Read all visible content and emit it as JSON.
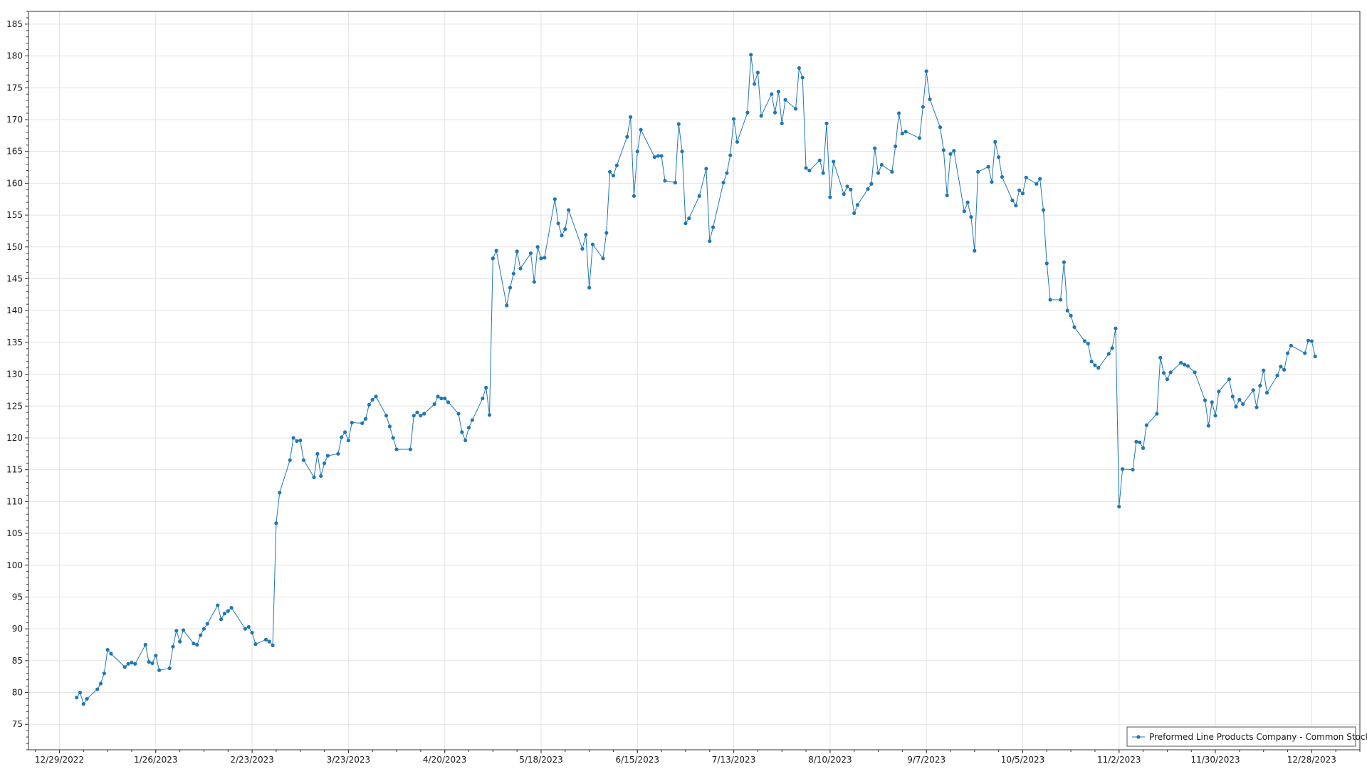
{
  "colors": {
    "series": "#1f77b4",
    "grid": "#e3e3e3",
    "axis": "#333333",
    "legend_border": "#555555"
  },
  "chart_data": {
    "type": "line",
    "title": "",
    "xlabel": "",
    "ylabel": "",
    "ylim": [
      71,
      187
    ],
    "xlim": [
      "2022-12-20",
      "2024-01-11"
    ],
    "y_ticks": [
      75,
      80,
      85,
      90,
      95,
      100,
      105,
      110,
      115,
      120,
      125,
      130,
      135,
      140,
      145,
      150,
      155,
      160,
      165,
      170,
      175,
      180,
      185
    ],
    "x_ticks": [
      {
        "date": "2022-12-29",
        "label": "12/29/2022"
      },
      {
        "date": "2023-01-26",
        "label": "1/26/2023"
      },
      {
        "date": "2023-02-23",
        "label": "2/23/2023"
      },
      {
        "date": "2023-03-23",
        "label": "3/23/2023"
      },
      {
        "date": "2023-04-20",
        "label": "4/20/2023"
      },
      {
        "date": "2023-05-18",
        "label": "5/18/2023"
      },
      {
        "date": "2023-06-15",
        "label": "6/15/2023"
      },
      {
        "date": "2023-07-13",
        "label": "7/13/2023"
      },
      {
        "date": "2023-08-10",
        "label": "8/10/2023"
      },
      {
        "date": "2023-09-07",
        "label": "9/7/2023"
      },
      {
        "date": "2023-10-05",
        "label": "10/5/2023"
      },
      {
        "date": "2023-11-02",
        "label": "11/2/2023"
      },
      {
        "date": "2023-11-30",
        "label": "11/30/2023"
      },
      {
        "date": "2023-12-28",
        "label": "12/28/2023"
      }
    ],
    "grid": true,
    "legend_position": "bottom-right",
    "series": [
      {
        "name": "Preformed Line Products Company - Common Stock",
        "marker": "circle",
        "points": [
          [
            "2023-01-03",
            79.2
          ],
          [
            "2023-01-04",
            80.0
          ],
          [
            "2023-01-05",
            78.2
          ],
          [
            "2023-01-06",
            79.0
          ],
          [
            "2023-01-09",
            80.5
          ],
          [
            "2023-01-10",
            81.4
          ],
          [
            "2023-01-11",
            83.0
          ],
          [
            "2023-01-12",
            86.7
          ],
          [
            "2023-01-13",
            86.1
          ],
          [
            "2023-01-17",
            84.0
          ],
          [
            "2023-01-18",
            84.5
          ],
          [
            "2023-01-19",
            84.7
          ],
          [
            "2023-01-20",
            84.5
          ],
          [
            "2023-01-23",
            87.5
          ],
          [
            "2023-01-24",
            84.8
          ],
          [
            "2023-01-25",
            84.6
          ],
          [
            "2023-01-26",
            85.8
          ],
          [
            "2023-01-27",
            83.5
          ],
          [
            "2023-01-30",
            83.8
          ],
          [
            "2023-01-31",
            87.2
          ],
          [
            "2023-02-01",
            89.7
          ],
          [
            "2023-02-02",
            88.0
          ],
          [
            "2023-02-03",
            89.8
          ],
          [
            "2023-02-06",
            87.7
          ],
          [
            "2023-02-07",
            87.5
          ],
          [
            "2023-02-08",
            89.0
          ],
          [
            "2023-02-09",
            90.0
          ],
          [
            "2023-02-10",
            90.8
          ],
          [
            "2023-02-13",
            93.7
          ],
          [
            "2023-02-14",
            91.5
          ],
          [
            "2023-02-15",
            92.4
          ],
          [
            "2023-02-16",
            92.8
          ],
          [
            "2023-02-17",
            93.3
          ],
          [
            "2023-02-21",
            90.0
          ],
          [
            "2023-02-22",
            90.3
          ],
          [
            "2023-02-23",
            89.4
          ],
          [
            "2023-02-24",
            87.6
          ],
          [
            "2023-02-27",
            88.3
          ],
          [
            "2023-02-28",
            88.0
          ],
          [
            "2023-03-01",
            87.4
          ],
          [
            "2023-03-02",
            106.6
          ],
          [
            "2023-03-03",
            111.4
          ],
          [
            "2023-03-06",
            116.5
          ],
          [
            "2023-03-07",
            120.0
          ],
          [
            "2023-03-08",
            119.5
          ],
          [
            "2023-03-09",
            119.6
          ],
          [
            "2023-03-10",
            116.5
          ],
          [
            "2023-03-13",
            113.8
          ],
          [
            "2023-03-14",
            117.5
          ],
          [
            "2023-03-15",
            114.0
          ],
          [
            "2023-03-16",
            116.0
          ],
          [
            "2023-03-17",
            117.2
          ],
          [
            "2023-03-20",
            117.5
          ],
          [
            "2023-03-21",
            120.1
          ],
          [
            "2023-03-22",
            120.9
          ],
          [
            "2023-03-23",
            119.6
          ],
          [
            "2023-03-24",
            122.4
          ],
          [
            "2023-03-27",
            122.3
          ],
          [
            "2023-03-28",
            123.0
          ],
          [
            "2023-03-29",
            125.2
          ],
          [
            "2023-03-30",
            126.0
          ],
          [
            "2023-03-31",
            126.5
          ],
          [
            "2023-04-03",
            123.5
          ],
          [
            "2023-04-04",
            121.8
          ],
          [
            "2023-04-05",
            120.0
          ],
          [
            "2023-04-06",
            118.2
          ],
          [
            "2023-04-10",
            118.2
          ],
          [
            "2023-04-11",
            123.5
          ],
          [
            "2023-04-12",
            124.0
          ],
          [
            "2023-04-13",
            123.5
          ],
          [
            "2023-04-14",
            123.8
          ],
          [
            "2023-04-17",
            125.3
          ],
          [
            "2023-04-18",
            126.5
          ],
          [
            "2023-04-19",
            126.2
          ],
          [
            "2023-04-20",
            126.2
          ],
          [
            "2023-04-21",
            125.6
          ],
          [
            "2023-04-24",
            123.8
          ],
          [
            "2023-04-25",
            120.9
          ],
          [
            "2023-04-26",
            119.6
          ],
          [
            "2023-04-27",
            121.6
          ],
          [
            "2023-04-28",
            122.8
          ],
          [
            "2023-05-01",
            126.2
          ],
          [
            "2023-05-02",
            127.9
          ],
          [
            "2023-05-03",
            123.6
          ],
          [
            "2023-05-04",
            148.2
          ],
          [
            "2023-05-05",
            149.4
          ],
          [
            "2023-05-08",
            140.8
          ],
          [
            "2023-05-09",
            143.6
          ],
          [
            "2023-05-10",
            145.8
          ],
          [
            "2023-05-11",
            149.3
          ],
          [
            "2023-05-12",
            146.6
          ],
          [
            "2023-05-15",
            149.0
          ],
          [
            "2023-05-16",
            144.5
          ],
          [
            "2023-05-17",
            150.0
          ],
          [
            "2023-05-18",
            148.2
          ],
          [
            "2023-05-19",
            148.3
          ],
          [
            "2023-05-22",
            157.5
          ],
          [
            "2023-05-23",
            153.7
          ],
          [
            "2023-05-24",
            151.8
          ],
          [
            "2023-05-25",
            152.8
          ],
          [
            "2023-05-26",
            155.8
          ],
          [
            "2023-05-30",
            149.7
          ],
          [
            "2023-05-31",
            151.9
          ],
          [
            "2023-06-01",
            143.6
          ],
          [
            "2023-06-02",
            150.4
          ],
          [
            "2023-06-05",
            148.2
          ],
          [
            "2023-06-06",
            152.2
          ],
          [
            "2023-06-07",
            161.8
          ],
          [
            "2023-06-08",
            161.2
          ],
          [
            "2023-06-09",
            162.8
          ],
          [
            "2023-06-12",
            167.3
          ],
          [
            "2023-06-13",
            170.4
          ],
          [
            "2023-06-14",
            158.0
          ],
          [
            "2023-06-15",
            165.0
          ],
          [
            "2023-06-16",
            168.4
          ],
          [
            "2023-06-20",
            164.1
          ],
          [
            "2023-06-21",
            164.3
          ],
          [
            "2023-06-22",
            164.3
          ],
          [
            "2023-06-23",
            160.4
          ],
          [
            "2023-06-26",
            160.1
          ],
          [
            "2023-06-27",
            169.3
          ],
          [
            "2023-06-28",
            165.0
          ],
          [
            "2023-06-29",
            153.7
          ],
          [
            "2023-06-30",
            154.5
          ],
          [
            "2023-07-03",
            158.0
          ],
          [
            "2023-07-05",
            162.3
          ],
          [
            "2023-07-06",
            150.9
          ],
          [
            "2023-07-07",
            153.1
          ],
          [
            "2023-07-10",
            160.1
          ],
          [
            "2023-07-11",
            161.6
          ],
          [
            "2023-07-12",
            164.4
          ],
          [
            "2023-07-13",
            170.1
          ],
          [
            "2023-07-14",
            166.5
          ],
          [
            "2023-07-17",
            171.1
          ],
          [
            "2023-07-18",
            180.2
          ],
          [
            "2023-07-19",
            175.6
          ],
          [
            "2023-07-20",
            177.4
          ],
          [
            "2023-07-21",
            170.6
          ],
          [
            "2023-07-24",
            174.0
          ],
          [
            "2023-07-25",
            171.1
          ],
          [
            "2023-07-26",
            174.4
          ],
          [
            "2023-07-27",
            169.4
          ],
          [
            "2023-07-28",
            173.1
          ],
          [
            "2023-07-31",
            171.7
          ],
          [
            "2023-08-01",
            178.1
          ],
          [
            "2023-08-02",
            176.6
          ],
          [
            "2023-08-03",
            162.4
          ],
          [
            "2023-08-04",
            162.0
          ],
          [
            "2023-08-07",
            163.6
          ],
          [
            "2023-08-08",
            161.6
          ],
          [
            "2023-08-09",
            169.4
          ],
          [
            "2023-08-10",
            157.8
          ],
          [
            "2023-08-11",
            163.4
          ],
          [
            "2023-08-14",
            158.3
          ],
          [
            "2023-08-15",
            159.5
          ],
          [
            "2023-08-16",
            159.0
          ],
          [
            "2023-08-17",
            155.3
          ],
          [
            "2023-08-18",
            156.6
          ],
          [
            "2023-08-21",
            159.1
          ],
          [
            "2023-08-22",
            159.9
          ],
          [
            "2023-08-23",
            165.5
          ],
          [
            "2023-08-24",
            161.6
          ],
          [
            "2023-08-25",
            162.9
          ],
          [
            "2023-08-28",
            161.8
          ],
          [
            "2023-08-29",
            165.8
          ],
          [
            "2023-08-30",
            171.0
          ],
          [
            "2023-08-31",
            167.8
          ],
          [
            "2023-09-01",
            168.1
          ],
          [
            "2023-09-05",
            167.1
          ],
          [
            "2023-09-06",
            172.0
          ],
          [
            "2023-09-07",
            177.6
          ],
          [
            "2023-09-08",
            173.2
          ],
          [
            "2023-09-11",
            168.8
          ],
          [
            "2023-09-12",
            165.2
          ],
          [
            "2023-09-13",
            158.1
          ],
          [
            "2023-09-14",
            164.6
          ],
          [
            "2023-09-15",
            165.1
          ],
          [
            "2023-09-18",
            155.6
          ],
          [
            "2023-09-19",
            157.0
          ],
          [
            "2023-09-20",
            154.7
          ],
          [
            "2023-09-21",
            149.4
          ],
          [
            "2023-09-22",
            161.8
          ],
          [
            "2023-09-25",
            162.6
          ],
          [
            "2023-09-26",
            160.2
          ],
          [
            "2023-09-27",
            166.5
          ],
          [
            "2023-09-28",
            164.1
          ],
          [
            "2023-09-29",
            161.0
          ],
          [
            "2023-10-02",
            157.3
          ],
          [
            "2023-10-03",
            156.5
          ],
          [
            "2023-10-04",
            158.9
          ],
          [
            "2023-10-05",
            158.4
          ],
          [
            "2023-10-06",
            160.9
          ],
          [
            "2023-10-09",
            159.9
          ],
          [
            "2023-10-10",
            160.7
          ],
          [
            "2023-10-11",
            155.8
          ],
          [
            "2023-10-12",
            147.4
          ],
          [
            "2023-10-13",
            141.7
          ],
          [
            "2023-10-16",
            141.7
          ],
          [
            "2023-10-17",
            147.6
          ],
          [
            "2023-10-18",
            140.0
          ],
          [
            "2023-10-19",
            139.2
          ],
          [
            "2023-10-20",
            137.4
          ],
          [
            "2023-10-23",
            135.2
          ],
          [
            "2023-10-24",
            134.8
          ],
          [
            "2023-10-25",
            132.0
          ],
          [
            "2023-10-26",
            131.4
          ],
          [
            "2023-10-27",
            131.0
          ],
          [
            "2023-10-30",
            133.2
          ],
          [
            "2023-10-31",
            134.1
          ],
          [
            "2023-11-01",
            137.2
          ],
          [
            "2023-11-02",
            109.2
          ],
          [
            "2023-11-03",
            115.1
          ],
          [
            "2023-11-06",
            115.0
          ],
          [
            "2023-11-07",
            119.4
          ],
          [
            "2023-11-08",
            119.3
          ],
          [
            "2023-11-09",
            118.4
          ],
          [
            "2023-11-10",
            122.0
          ],
          [
            "2023-11-13",
            123.8
          ],
          [
            "2023-11-14",
            132.6
          ],
          [
            "2023-11-15",
            130.2
          ],
          [
            "2023-11-16",
            129.2
          ],
          [
            "2023-11-17",
            130.3
          ],
          [
            "2023-11-20",
            131.8
          ],
          [
            "2023-11-21",
            131.5
          ],
          [
            "2023-11-22",
            131.3
          ],
          [
            "2023-11-24",
            130.3
          ],
          [
            "2023-11-27",
            125.9
          ],
          [
            "2023-11-28",
            121.9
          ],
          [
            "2023-11-29",
            125.6
          ],
          [
            "2023-11-30",
            123.5
          ],
          [
            "2023-12-01",
            127.3
          ],
          [
            "2023-12-04",
            129.2
          ],
          [
            "2023-12-05",
            126.5
          ],
          [
            "2023-12-06",
            124.9
          ],
          [
            "2023-12-07",
            126.0
          ],
          [
            "2023-12-08",
            125.3
          ],
          [
            "2023-12-11",
            127.5
          ],
          [
            "2023-12-12",
            124.8
          ],
          [
            "2023-12-13",
            128.2
          ],
          [
            "2023-12-14",
            130.6
          ],
          [
            "2023-12-15",
            127.1
          ],
          [
            "2023-12-18",
            129.8
          ],
          [
            "2023-12-19",
            131.2
          ],
          [
            "2023-12-20",
            130.7
          ],
          [
            "2023-12-21",
            133.3
          ],
          [
            "2023-12-22",
            134.5
          ],
          [
            "2023-12-26",
            133.3
          ],
          [
            "2023-12-27",
            135.3
          ],
          [
            "2023-12-28",
            135.2
          ],
          [
            "2023-12-29",
            132.8
          ]
        ]
      }
    ]
  }
}
